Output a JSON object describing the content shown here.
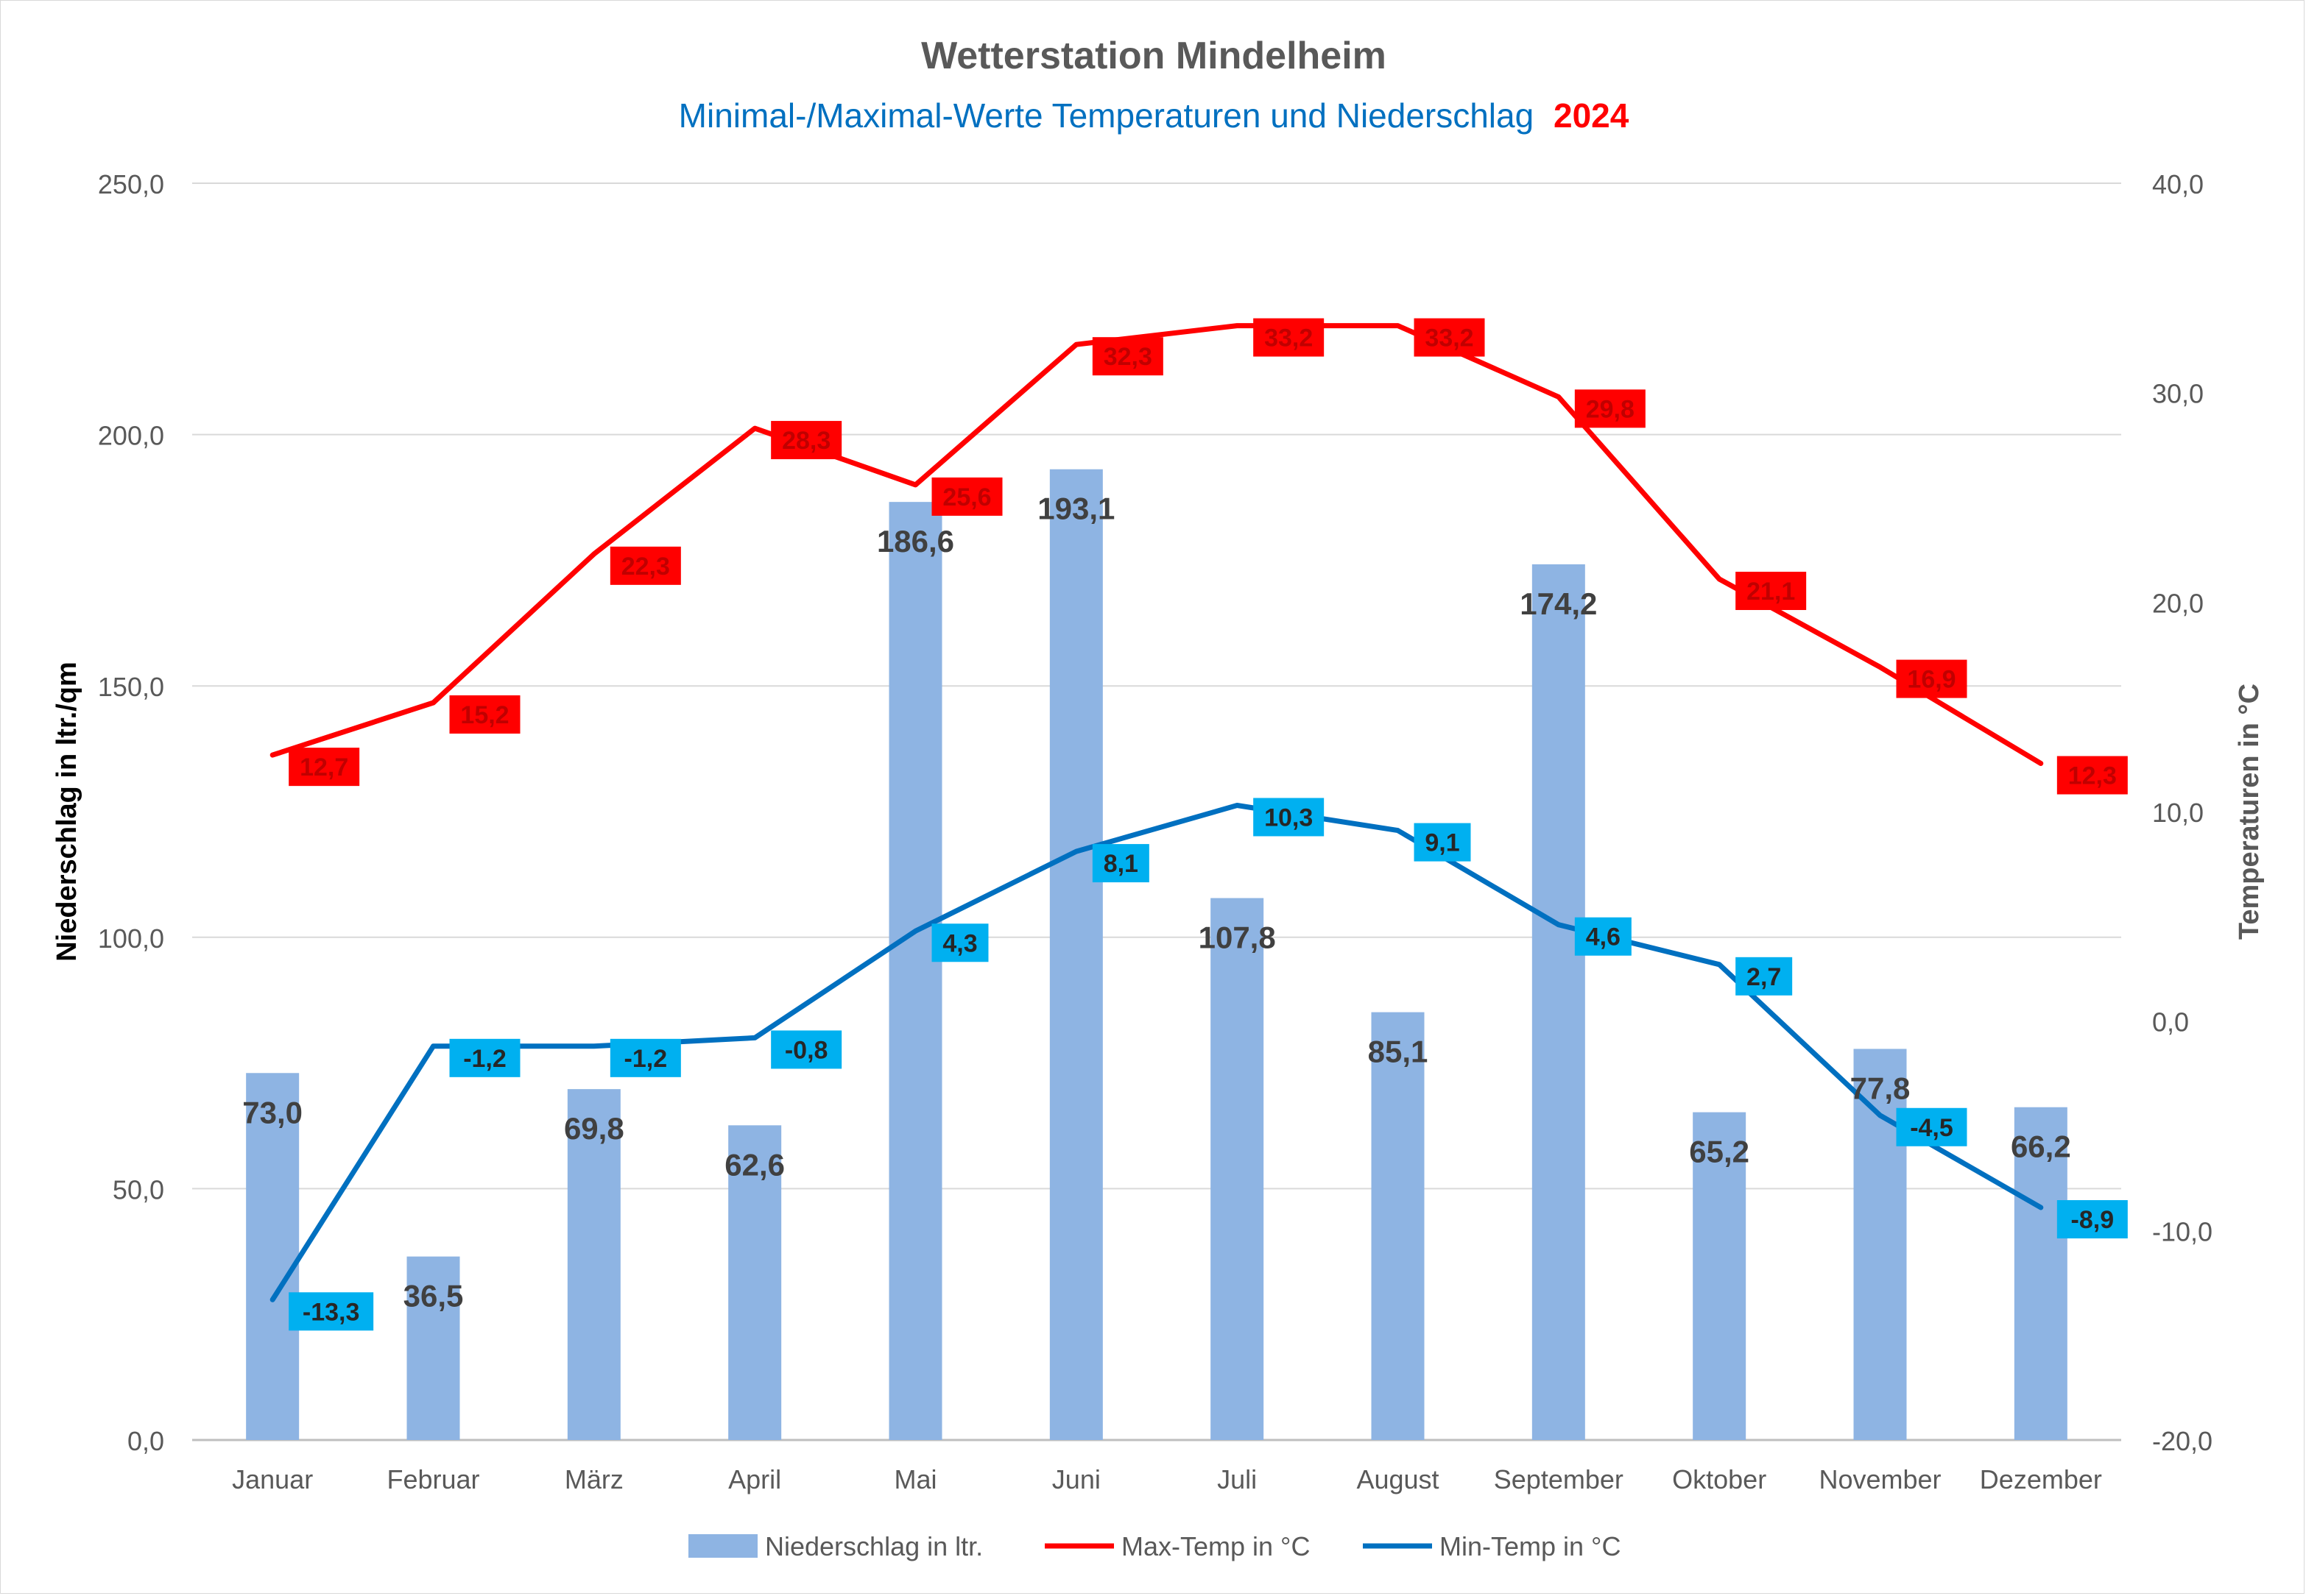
{
  "chart_data": {
    "type": "bar+line",
    "title": "Wetterstation Mindelheim",
    "subtitle": {
      "text": "Minimal-/Maximal-Werte Temperaturen und Niederschlag",
      "year": "2024"
    },
    "categories": [
      "Januar",
      "Februar",
      "März",
      "April",
      "Mai",
      "Juni",
      "Juli",
      "August",
      "September",
      "Oktober",
      "November",
      "Dezember"
    ],
    "y_left": {
      "label": "Niederschlag in ltr./qm",
      "range": [
        0,
        250
      ],
      "ticks": [
        "0,0",
        "50,0",
        "100,0",
        "150,0",
        "200,0",
        "250,0"
      ]
    },
    "y_right": {
      "label": "Temperaturen in °C",
      "range": [
        -20,
        40
      ],
      "ticks": [
        "-20,0",
        "-10,0",
        "0,0",
        "10,0",
        "20,0",
        "30,0",
        "40,0"
      ]
    },
    "grid": true,
    "legend_position": "bottom",
    "series": [
      {
        "name": "Niederschlag in ltr.",
        "type": "bar",
        "axis": "left",
        "color": "#8eb4e3",
        "values": [
          73.0,
          36.5,
          69.8,
          62.6,
          186.6,
          193.1,
          107.8,
          85.1,
          174.2,
          65.2,
          77.8,
          66.2
        ],
        "labels": [
          "73,0",
          "36,5",
          "69,8",
          "62,6",
          "186,6",
          "193,1",
          "107,8",
          "85,1",
          "174,2",
          "65,2",
          "77,8",
          "66,2"
        ]
      },
      {
        "name": "Max-Temp in °C",
        "type": "line",
        "axis": "right",
        "color": "#ff0000",
        "label_background": "#ff0000",
        "label_color": "#c00000",
        "values": [
          12.7,
          15.2,
          22.3,
          28.3,
          25.6,
          32.3,
          33.2,
          33.2,
          29.8,
          21.1,
          16.9,
          12.3
        ],
        "labels": [
          "12,7",
          "15,2",
          "22,3",
          "28,3",
          "25,6",
          "32,3",
          "33,2",
          "33,2",
          "29,8",
          "21,1",
          "16,9",
          "12,3"
        ]
      },
      {
        "name": "Min-Temp in °C",
        "type": "line",
        "axis": "right",
        "color": "#0070c0",
        "label_background": "#00b0f0",
        "label_color": "#262626",
        "values": [
          -13.3,
          -1.2,
          -1.2,
          -0.8,
          4.3,
          8.1,
          10.3,
          9.1,
          4.6,
          2.7,
          -4.5,
          -8.9
        ],
        "labels": [
          "-13,3",
          "-1,2",
          "-1,2",
          "-0,8",
          "4,3",
          "8,1",
          "10,3",
          "9,1",
          "4,6",
          "2,7",
          "-4,5",
          "-8,9"
        ]
      }
    ]
  }
}
